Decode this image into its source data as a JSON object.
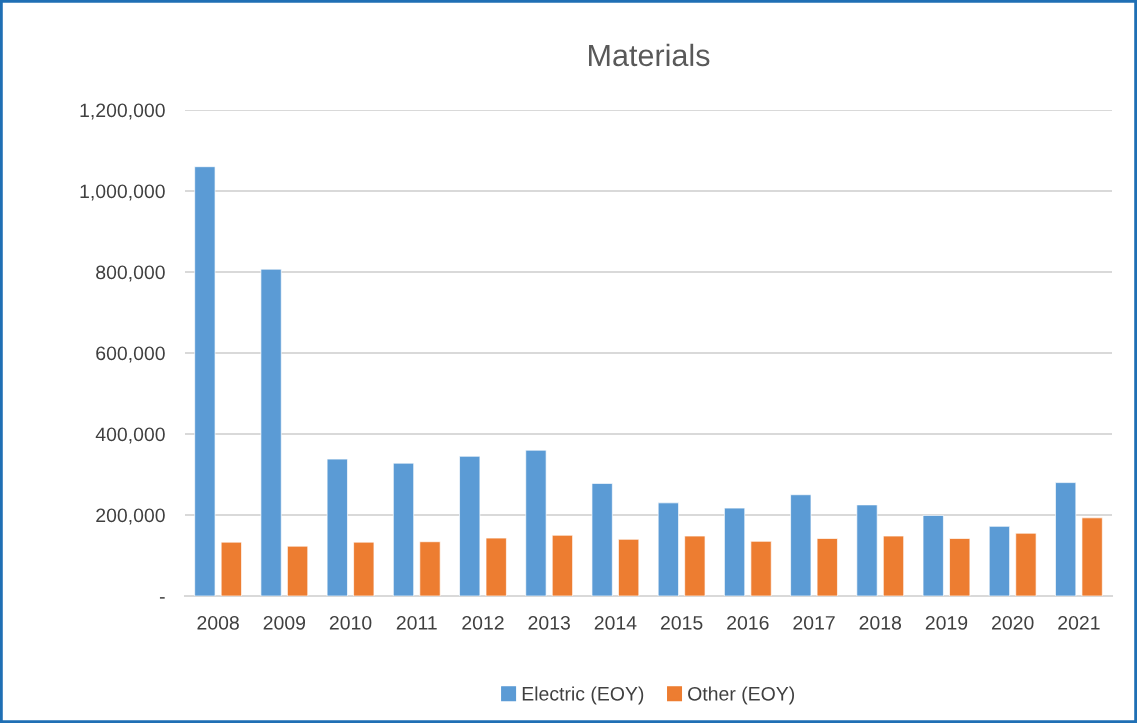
{
  "chart_data": {
    "type": "bar",
    "title": "Materials",
    "categories": [
      "2008",
      "2009",
      "2010",
      "2011",
      "2012",
      "2013",
      "2014",
      "2015",
      "2016",
      "2017",
      "2018",
      "2019",
      "2020",
      "2021"
    ],
    "series": [
      {
        "name": "Electric (EOY)",
        "color": "#5b9bd5",
        "values": [
          1060000,
          807000,
          338000,
          328000,
          345000,
          360000,
          278000,
          230000,
          217000,
          250000,
          225000,
          199000,
          172000,
          280000
        ]
      },
      {
        "name": "Other (EOY)",
        "color": "#ed7d31",
        "values": [
          133000,
          123000,
          133000,
          134000,
          143000,
          150000,
          140000,
          148000,
          135000,
          142000,
          148000,
          142000,
          155000,
          193000
        ]
      }
    ],
    "ylim": [
      0,
      1200000
    ],
    "yticks": [
      {
        "value": 0,
        "label": "-"
      },
      {
        "value": 200000,
        "label": "200,000"
      },
      {
        "value": 400000,
        "label": "400,000"
      },
      {
        "value": 600000,
        "label": "600,000"
      },
      {
        "value": 800000,
        "label": "800,000"
      },
      {
        "value": 1000000,
        "label": "1,000,000"
      },
      {
        "value": 1200000,
        "label": "1,200,000"
      }
    ],
    "grid": "y",
    "legend": "bottom"
  }
}
